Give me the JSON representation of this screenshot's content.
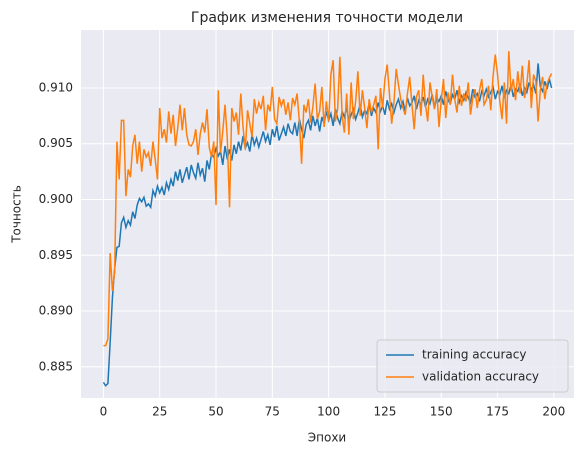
{
  "chart_data": {
    "type": "line",
    "title": "График изменения точности модели",
    "xlabel": "Эпохи",
    "ylabel": "Точность",
    "x": [
      0,
      1,
      2,
      3,
      4,
      5,
      6,
      7,
      8,
      9,
      10,
      11,
      12,
      13,
      14,
      15,
      16,
      17,
      18,
      19,
      20,
      21,
      22,
      23,
      24,
      25,
      26,
      27,
      28,
      29,
      30,
      31,
      32,
      33,
      34,
      35,
      36,
      37,
      38,
      39,
      40,
      41,
      42,
      43,
      44,
      45,
      46,
      47,
      48,
      49,
      50,
      51,
      52,
      53,
      54,
      55,
      56,
      57,
      58,
      59,
      60,
      61,
      62,
      63,
      64,
      65,
      66,
      67,
      68,
      69,
      70,
      71,
      72,
      73,
      74,
      75,
      76,
      77,
      78,
      79,
      80,
      81,
      82,
      83,
      84,
      85,
      86,
      87,
      88,
      89,
      90,
      91,
      92,
      93,
      94,
      95,
      96,
      97,
      98,
      99,
      100,
      101,
      102,
      103,
      104,
      105,
      106,
      107,
      108,
      109,
      110,
      111,
      112,
      113,
      114,
      115,
      116,
      117,
      118,
      119,
      120,
      121,
      122,
      123,
      124,
      125,
      126,
      127,
      128,
      129,
      130,
      131,
      132,
      133,
      134,
      135,
      136,
      137,
      138,
      139,
      140,
      141,
      142,
      143,
      144,
      145,
      146,
      147,
      148,
      149,
      150,
      151,
      152,
      153,
      154,
      155,
      156,
      157,
      158,
      159,
      160,
      161,
      162,
      163,
      164,
      165,
      166,
      167,
      168,
      169,
      170,
      171,
      172,
      173,
      174,
      175,
      176,
      177,
      178,
      179,
      180,
      181,
      182,
      183,
      184,
      185,
      186,
      187,
      188,
      189,
      190,
      191,
      192,
      193,
      194,
      195,
      196,
      197,
      198,
      199
    ],
    "series": [
      {
        "name": "training accuracy",
        "color": "#1f77b4",
        "values": [
          0.8836,
          0.8833,
          0.8835,
          0.8872,
          0.8912,
          0.8938,
          0.8957,
          0.8958,
          0.8979,
          0.8984,
          0.8975,
          0.8981,
          0.8977,
          0.8989,
          0.8983,
          0.8995,
          0.9001,
          0.8998,
          0.9002,
          0.8994,
          0.8996,
          0.8993,
          0.9008,
          0.9003,
          0.9012,
          0.9006,
          0.9011,
          0.9004,
          0.9015,
          0.9009,
          0.9018,
          0.9012,
          0.9025,
          0.9017,
          0.9027,
          0.9015,
          0.9022,
          0.9029,
          0.9018,
          0.9031,
          0.9024,
          0.9019,
          0.9033,
          0.9022,
          0.9028,
          0.9016,
          0.9035,
          0.9027,
          0.9041,
          0.9038,
          0.9046,
          0.9039,
          0.9043,
          0.9031,
          0.9048,
          0.9036,
          0.9045,
          0.9035,
          0.9049,
          0.9041,
          0.9052,
          0.9044,
          0.9057,
          0.9046,
          0.9051,
          0.9043,
          0.9058,
          0.9049,
          0.9055,
          0.9047,
          0.9054,
          0.9061,
          0.9052,
          0.9058,
          0.9049,
          0.9063,
          0.9056,
          0.9066,
          0.9053,
          0.9059,
          0.9065,
          0.9057,
          0.9068,
          0.9061,
          0.9059,
          0.9069,
          0.9057,
          0.9072,
          0.9063,
          0.9055,
          0.9067,
          0.9071,
          0.9062,
          0.9075,
          0.9066,
          0.9073,
          0.9061,
          0.9074,
          0.9068,
          0.9079,
          0.9071,
          0.9077,
          0.9066,
          0.9081,
          0.9073,
          0.9068,
          0.9079,
          0.9074,
          0.9083,
          0.907,
          0.9076,
          0.9081,
          0.9072,
          0.9078,
          0.9085,
          0.9074,
          0.908,
          0.9077,
          0.9086,
          0.9075,
          0.9082,
          0.9078,
          0.9087,
          0.9079,
          0.9084,
          0.9076,
          0.9089,
          0.9081,
          0.9086,
          0.9078,
          0.9085,
          0.909,
          0.9082,
          0.9088,
          0.9079,
          0.9091,
          0.9084,
          0.9087,
          0.9093,
          0.9081,
          0.9089,
          0.9085,
          0.9092,
          0.9083,
          0.909,
          0.9086,
          0.9094,
          0.9082,
          0.9091,
          0.9088,
          0.9093,
          0.9085,
          0.9097,
          0.9089,
          0.9086,
          0.9094,
          0.909,
          0.9098,
          0.9087,
          0.9093,
          0.9089,
          0.9096,
          0.9091,
          0.9087,
          0.9099,
          0.9092,
          0.9095,
          0.9088,
          0.9097,
          0.9093,
          0.9099,
          0.9092,
          0.9096,
          0.9101,
          0.909,
          0.9097,
          0.9094,
          0.9102,
          0.9091,
          0.9098,
          0.9095,
          0.9103,
          0.9092,
          0.9099,
          0.9097,
          0.9104,
          0.9093,
          0.91,
          0.9096,
          0.9105,
          0.9098,
          0.9103,
          0.9095,
          0.9122,
          0.9101,
          0.9097,
          0.9106,
          0.9099,
          0.9108,
          0.91
        ]
      },
      {
        "name": "validation accuracy",
        "color": "#ff7f0e",
        "values": [
          0.8869,
          0.8869,
          0.8875,
          0.8952,
          0.8918,
          0.8935,
          0.9052,
          0.9018,
          0.9071,
          0.9071,
          0.9003,
          0.9027,
          0.902,
          0.9048,
          0.9058,
          0.9032,
          0.9052,
          0.9025,
          0.9045,
          0.9038,
          0.9042,
          0.903,
          0.9052,
          0.9036,
          0.9018,
          0.9082,
          0.9055,
          0.9063,
          0.9051,
          0.9079,
          0.9059,
          0.9076,
          0.9048,
          0.9064,
          0.9085,
          0.9062,
          0.9082,
          0.9058,
          0.9049,
          0.9048,
          0.9052,
          0.9063,
          0.904,
          0.9059,
          0.9069,
          0.906,
          0.9081,
          0.9047,
          0.9038,
          0.9052,
          0.8995,
          0.9098,
          0.9042,
          0.9061,
          0.9085,
          0.9055,
          0.8993,
          0.9082,
          0.907,
          0.9078,
          0.9058,
          0.9095,
          0.9065,
          0.9045,
          0.908,
          0.9068,
          0.9056,
          0.909,
          0.9077,
          0.9087,
          0.9081,
          0.9093,
          0.9062,
          0.9085,
          0.9079,
          0.9101,
          0.9072,
          0.9068,
          0.9092,
          0.9084,
          0.909,
          0.9076,
          0.9087,
          0.9071,
          0.9091,
          0.9085,
          0.9095,
          0.907,
          0.9032,
          0.9085,
          0.9078,
          0.909,
          0.9069,
          0.9083,
          0.9104,
          0.9072,
          0.9079,
          0.9101,
          0.9065,
          0.9088,
          0.907,
          0.9112,
          0.9125,
          0.907,
          0.9081,
          0.9128,
          0.9075,
          0.906,
          0.9095,
          0.9058,
          0.9105,
          0.9072,
          0.9088,
          0.9115,
          0.9075,
          0.9098,
          0.9082,
          0.9064,
          0.909,
          0.9078,
          0.9085,
          0.9093,
          0.9045,
          0.91,
          0.9082,
          0.9108,
          0.9121,
          0.9095,
          0.9068,
          0.9087,
          0.9117,
          0.9103,
          0.909,
          0.9082,
          0.9076,
          0.9095,
          0.911,
          0.9085,
          0.9063,
          0.9092,
          0.9098,
          0.9075,
          0.9112,
          0.9085,
          0.907,
          0.9105,
          0.9092,
          0.9081,
          0.9099,
          0.9065,
          0.9089,
          0.9108,
          0.9073,
          0.9096,
          0.9085,
          0.9112,
          0.909,
          0.9078,
          0.9102,
          0.9084,
          0.9095,
          0.9088,
          0.9105,
          0.9076,
          0.9091,
          0.9099,
          0.9082,
          0.9098,
          0.9108,
          0.9085,
          0.9089,
          0.9102,
          0.908,
          0.911,
          0.913,
          0.9112,
          0.9088,
          0.9072,
          0.9105,
          0.9068,
          0.9133,
          0.9097,
          0.9108,
          0.9089,
          0.9115,
          0.9095,
          0.912,
          0.9091,
          0.9103,
          0.9125,
          0.9082,
          0.9112,
          0.9106,
          0.907,
          0.9098,
          0.911,
          0.909,
          0.9104,
          0.9109,
          0.9113
        ]
      }
    ],
    "xlim": [
      -9.95,
      208.95
    ],
    "xticks": [
      0,
      25,
      50,
      75,
      100,
      125,
      150,
      175,
      200
    ],
    "ylim": [
      0.8822,
      0.9152
    ],
    "yticks": [
      0.885,
      {
        "value": 0.89,
        "label": "0.890"
      },
      0.895,
      {
        "value": 0.9,
        "label": "0.900"
      },
      0.905,
      {
        "value": 0.91,
        "label": "0.910"
      }
    ],
    "grid": true,
    "legend": "lower right"
  }
}
